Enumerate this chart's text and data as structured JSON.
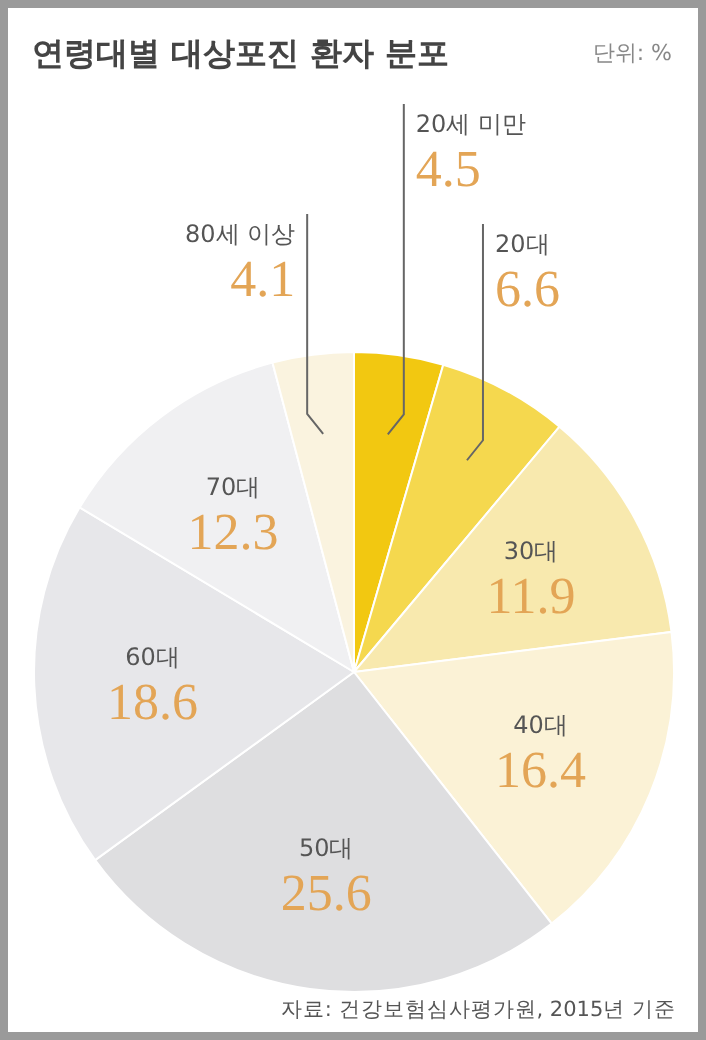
{
  "chart_data": {
    "type": "pie",
    "title": "연령대별 대상포진 환자 분포",
    "subtitle": "단위: %",
    "categories": [
      "20세 미만",
      "20대",
      "30대",
      "40대",
      "50대",
      "60대",
      "70대",
      "80세 이상"
    ],
    "values": [
      4.5,
      6.6,
      11.9,
      16.4,
      25.6,
      18.6,
      12.3,
      4.1
    ],
    "colors": [
      "#f2c811",
      "#f5d84e",
      "#f8e9ae",
      "#fbf2d6",
      "#dedee0",
      "#e7e7ea",
      "#f0f0f2",
      "#faf3df"
    ],
    "data_labels": true,
    "annotations": [
      "자료: 건강보험심사평가원, 2015년 기준"
    ]
  }
}
